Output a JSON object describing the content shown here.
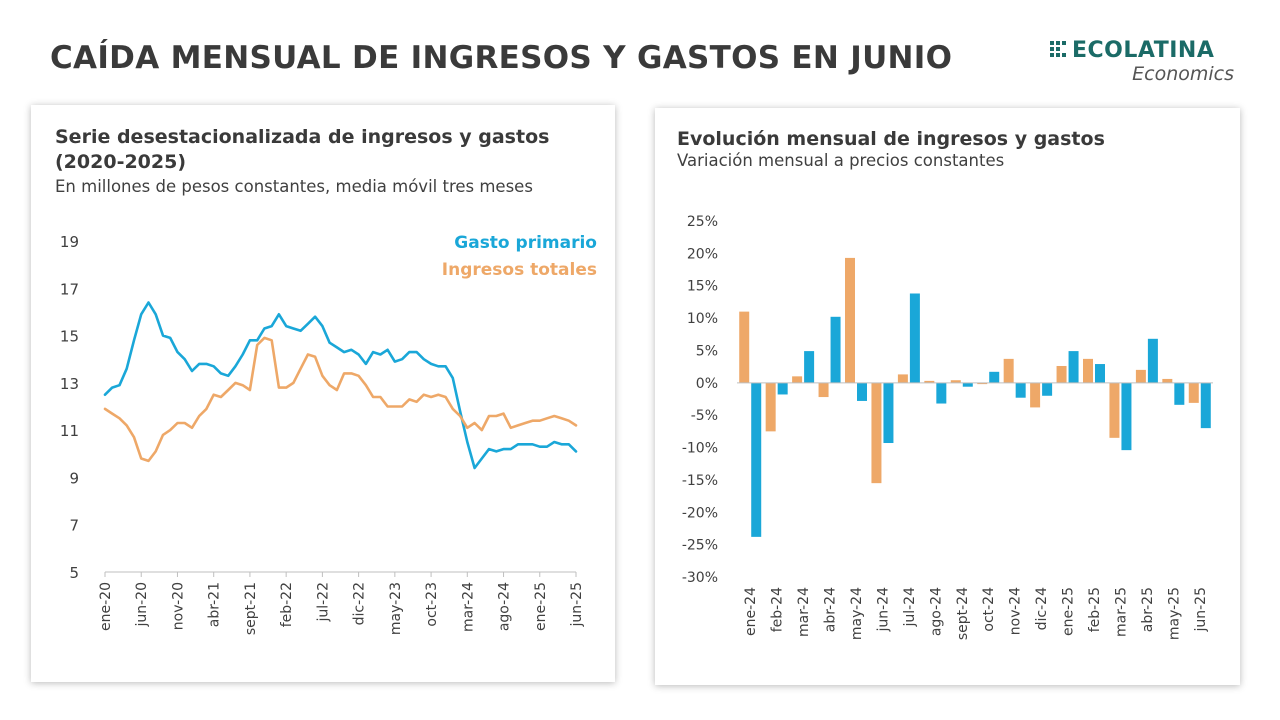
{
  "page": {
    "title": "CAÍDA MENSUAL DE INGRESOS Y GASTOS EN JUNIO"
  },
  "logo": {
    "name": "ECOLATINA",
    "sub": "Economics",
    "color": "#1b6b67"
  },
  "colors": {
    "gasto": "#1aa7d8",
    "ingresos": "#eea868"
  },
  "left_panel": {
    "title": "Serie desestacionalizada de ingresos y gastos (2020-2025)",
    "subtitle": "En millones de pesos constantes, media móvil tres meses"
  },
  "right_panel": {
    "title": "Evolución mensual de ingresos y gastos",
    "subtitle": "Variación mensual a precios constantes"
  },
  "chart_data": [
    {
      "type": "line",
      "ylim": [
        5,
        19
      ],
      "yticks": [
        5,
        7,
        9,
        11,
        13,
        15,
        17,
        19
      ],
      "xtick_labels": [
        "ene-20",
        "jun-20",
        "nov-20",
        "abr-21",
        "sept-21",
        "feb-22",
        "jul-22",
        "dic-22",
        "may-23",
        "oct-23",
        "mar-24",
        "ago-24",
        "ene-25",
        "jun-25"
      ],
      "xtick_every": 5,
      "grid": false,
      "legend_position": "top-right",
      "series": [
        {
          "name": "Gasto primario",
          "color": "#1aa7d8",
          "values": [
            12.5,
            12.8,
            12.9,
            13.6,
            14.8,
            15.9,
            16.4,
            15.9,
            15.0,
            14.9,
            14.3,
            14.0,
            13.5,
            13.8,
            13.8,
            13.7,
            13.4,
            13.3,
            13.7,
            14.2,
            14.8,
            14.8,
            15.3,
            15.4,
            15.9,
            15.4,
            15.3,
            15.2,
            15.5,
            15.8,
            15.4,
            14.7,
            14.5,
            14.3,
            14.4,
            14.2,
            13.8,
            14.3,
            14.2,
            14.4,
            13.9,
            14.0,
            14.3,
            14.3,
            14.0,
            13.8,
            13.7,
            13.7,
            13.2,
            11.8,
            10.5,
            9.4,
            9.8,
            10.2,
            10.1,
            10.2,
            10.2,
            10.4,
            10.4,
            10.4,
            10.3,
            10.3,
            10.5,
            10.4,
            10.4,
            10.1
          ]
        },
        {
          "name": "Ingresos totales",
          "color": "#eea868",
          "values": [
            11.9,
            11.7,
            11.5,
            11.2,
            10.7,
            9.8,
            9.7,
            10.1,
            10.8,
            11.0,
            11.3,
            11.3,
            11.1,
            11.6,
            11.9,
            12.5,
            12.4,
            12.7,
            13.0,
            12.9,
            12.7,
            14.6,
            14.9,
            14.8,
            12.8,
            12.8,
            13.0,
            13.6,
            14.2,
            14.1,
            13.3,
            12.9,
            12.7,
            13.4,
            13.4,
            13.3,
            12.9,
            12.4,
            12.4,
            12.0,
            12.0,
            12.0,
            12.3,
            12.2,
            12.5,
            12.4,
            12.5,
            12.4,
            11.9,
            11.6,
            11.1,
            11.3,
            11.0,
            11.6,
            11.6,
            11.7,
            11.1,
            11.2,
            11.3,
            11.4,
            11.4,
            11.5,
            11.6,
            11.5,
            11.4,
            11.2
          ]
        }
      ]
    },
    {
      "type": "bar",
      "ylim": [
        -30,
        25
      ],
      "yticks": [
        -30,
        -25,
        -20,
        -15,
        -10,
        -5,
        0,
        5,
        10,
        15,
        20,
        25
      ],
      "tick_suffix": "%",
      "categories": [
        "ene-24",
        "feb-24",
        "mar-24",
        "abr-24",
        "may-24",
        "jun-24",
        "jul-24",
        "ago-24",
        "sept-24",
        "oct-24",
        "nov-24",
        "dic-24",
        "ene-25",
        "feb-25",
        "mar-25",
        "abr-25",
        "may-25",
        "jun-25"
      ],
      "series": [
        {
          "color": "#eea868",
          "values": [
            11.0,
            -7.5,
            1.0,
            -2.2,
            19.3,
            -15.5,
            1.3,
            0.3,
            0.4,
            -0.2,
            3.7,
            -3.8,
            2.6,
            3.7,
            -8.5,
            2.0,
            0.6,
            -3.1
          ]
        },
        {
          "color": "#1aa7d8",
          "values": [
            -23.8,
            -1.8,
            4.9,
            10.2,
            -2.8,
            -9.3,
            13.8,
            -3.2,
            -0.6,
            1.7,
            -2.3,
            -2.0,
            4.9,
            2.9,
            -10.4,
            6.8,
            -3.4,
            -7.0
          ]
        }
      ]
    }
  ]
}
